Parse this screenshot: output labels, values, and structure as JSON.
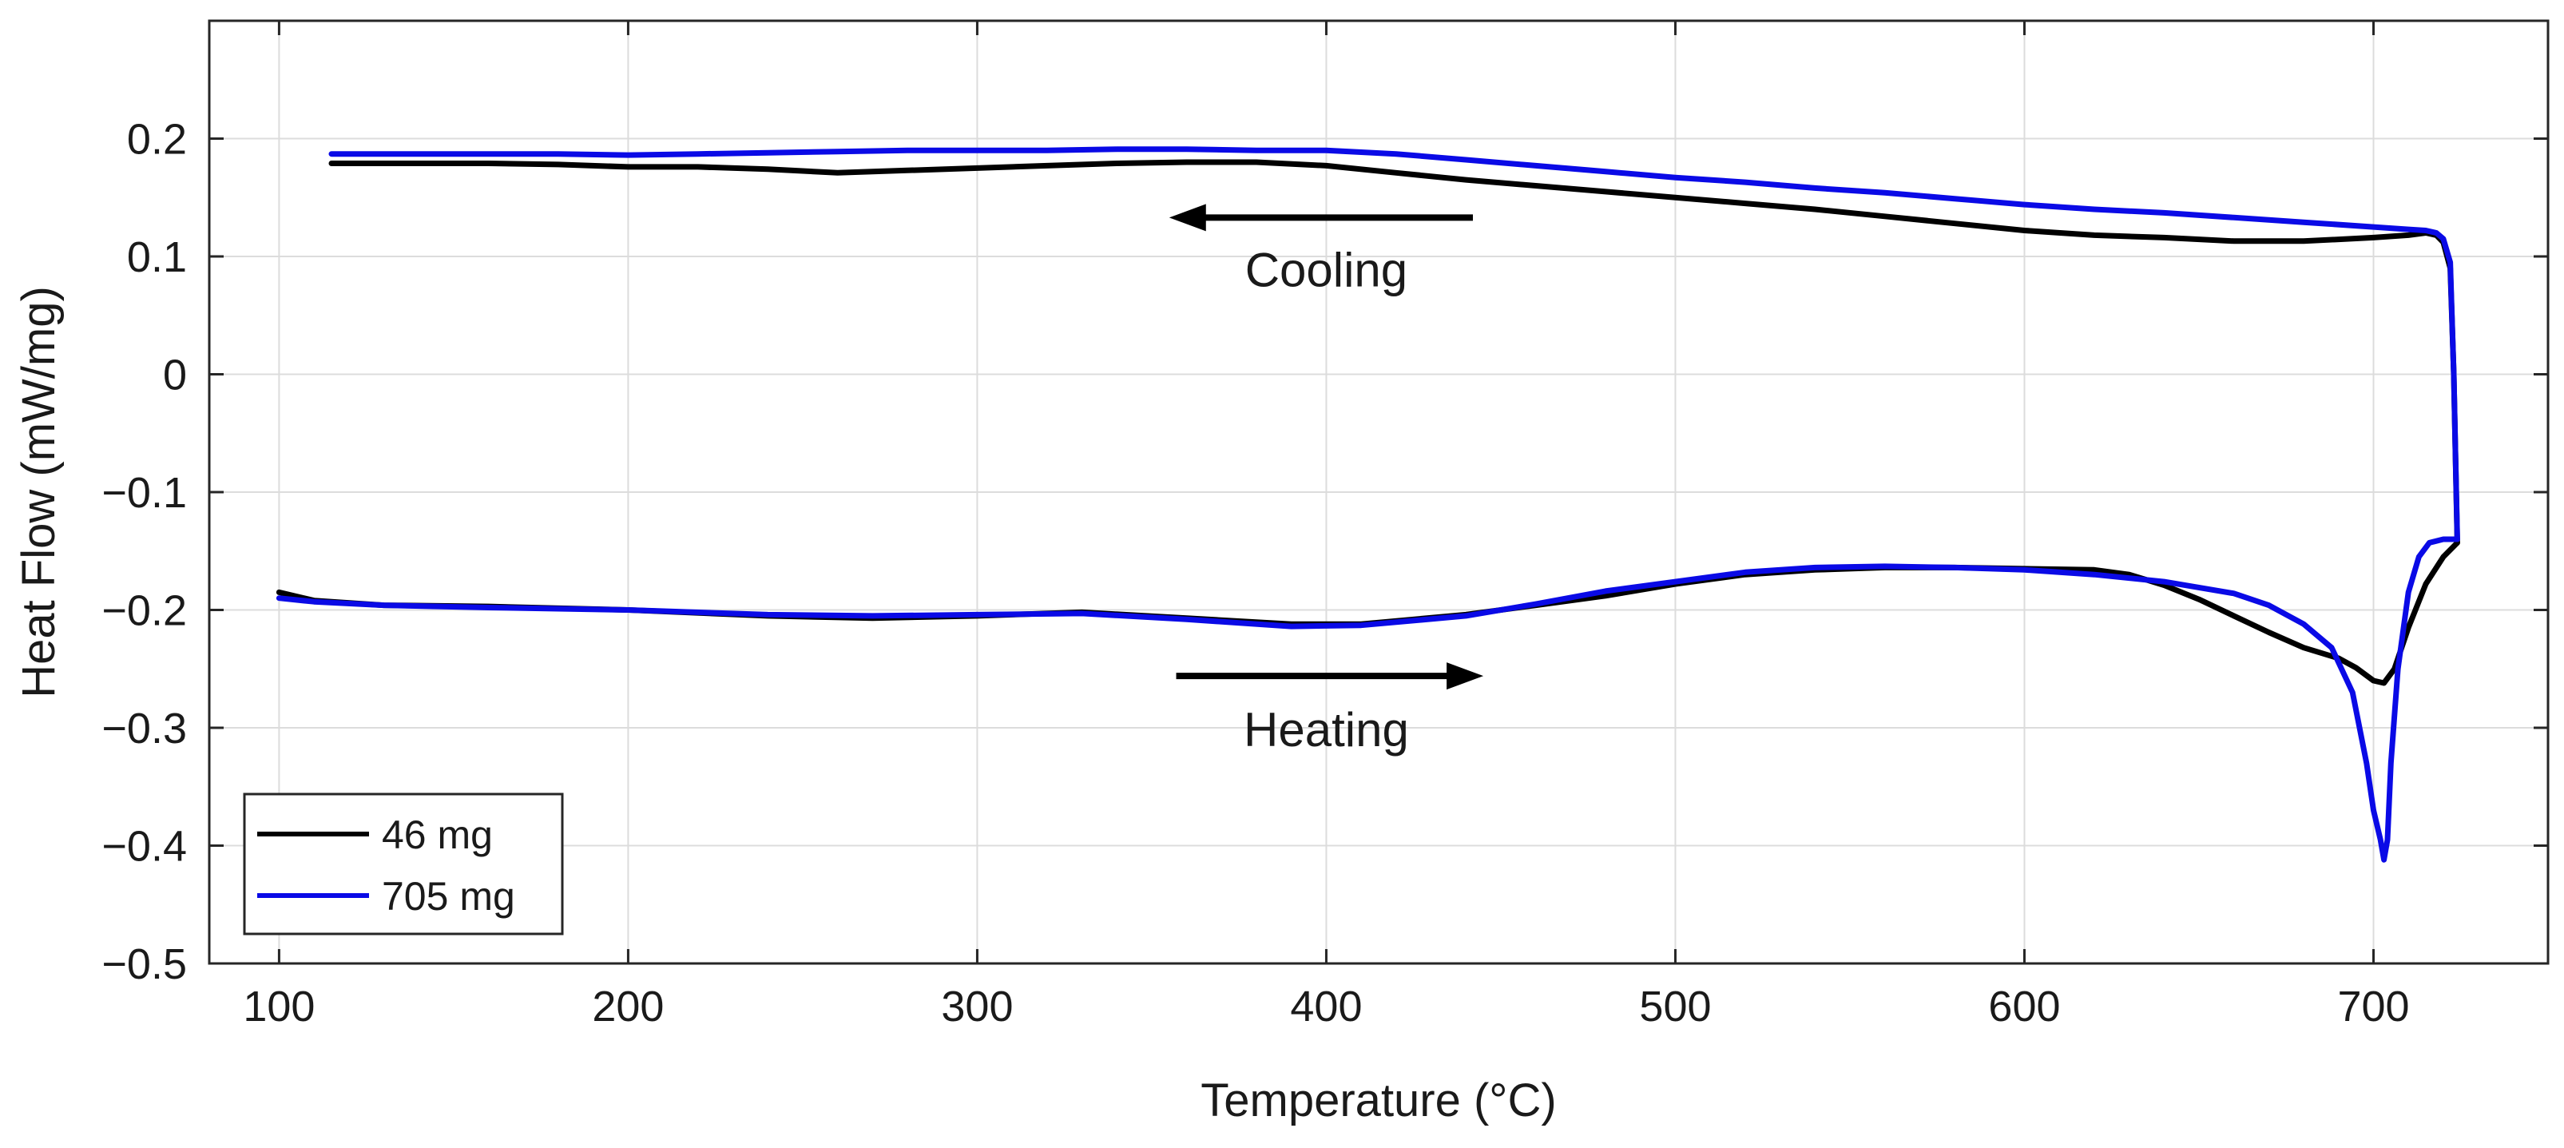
{
  "chart_data": {
    "type": "line",
    "title": "",
    "xlabel": "Temperature (°C)",
    "ylabel": "Heat Flow (mW/mg)",
    "xlim": [
      80,
      750
    ],
    "ylim": [
      -0.5,
      0.3
    ],
    "grid": true,
    "x_ticks": [
      100,
      200,
      300,
      400,
      500,
      600,
      700
    ],
    "y_ticks": [
      -0.5,
      -0.4,
      -0.3,
      -0.2,
      -0.1,
      0,
      0.1,
      0.2
    ],
    "x_tick_labels": [
      "100",
      "200",
      "300",
      "400",
      "500",
      "600",
      "700"
    ],
    "y_tick_labels": [
      "−0.5",
      "−0.4",
      "−0.3",
      "−0.2",
      "−0.1",
      "0",
      "0.1",
      "0.2"
    ],
    "legend_position": "bottom-left",
    "annotations": [
      {
        "text": "Cooling",
        "direction": "left",
        "x": 400,
        "y": 0.088,
        "arrow_from_x": 442,
        "arrow_to_x": 355,
        "arrow_y": 0.133
      },
      {
        "text": "Heating",
        "direction": "right",
        "x": 400,
        "y": -0.302,
        "arrow_from_x": 357,
        "arrow_to_x": 445,
        "arrow_y": -0.256
      }
    ],
    "series": [
      {
        "name": "46 mg",
        "color": "#000000",
        "heating": {
          "x": [
            100,
            110,
            130,
            160,
            200,
            240,
            270,
            300,
            330,
            360,
            390,
            410,
            440,
            460,
            480,
            500,
            520,
            540,
            560,
            580,
            600,
            620,
            630,
            640,
            650,
            660,
            670,
            680,
            690,
            695,
            700,
            703,
            706,
            710,
            715,
            720,
            724
          ],
          "y": [
            -0.185,
            -0.192,
            -0.196,
            -0.197,
            -0.2,
            -0.205,
            -0.207,
            -0.205,
            -0.202,
            -0.207,
            -0.212,
            -0.212,
            -0.204,
            -0.196,
            -0.188,
            -0.178,
            -0.17,
            -0.166,
            -0.164,
            -0.164,
            -0.165,
            -0.166,
            -0.17,
            -0.179,
            -0.191,
            -0.205,
            -0.219,
            -0.232,
            -0.241,
            -0.249,
            -0.26,
            -0.262,
            -0.25,
            -0.215,
            -0.178,
            -0.155,
            -0.143
          ]
        },
        "cooling": {
          "x": [
            724,
            723,
            722,
            720,
            718,
            715,
            710,
            700,
            680,
            660,
            640,
            620,
            600,
            580,
            560,
            540,
            520,
            500,
            480,
            460,
            440,
            420,
            400,
            380,
            360,
            340,
            320,
            300,
            280,
            260,
            240,
            220,
            200,
            180,
            160,
            140,
            115
          ],
          "y": [
            -0.143,
            0.0,
            0.09,
            0.112,
            0.118,
            0.12,
            0.118,
            0.116,
            0.113,
            0.113,
            0.116,
            0.118,
            0.122,
            0.128,
            0.134,
            0.14,
            0.145,
            0.15,
            0.155,
            0.16,
            0.165,
            0.171,
            0.177,
            0.18,
            0.18,
            0.179,
            0.177,
            0.175,
            0.173,
            0.171,
            0.174,
            0.176,
            0.176,
            0.178,
            0.179,
            0.179,
            0.179
          ]
        }
      },
      {
        "name": "705 mg",
        "color": "#0a0ae6",
        "heating": {
          "x": [
            100,
            110,
            130,
            160,
            200,
            240,
            270,
            300,
            330,
            360,
            390,
            410,
            440,
            460,
            480,
            500,
            520,
            540,
            560,
            580,
            600,
            620,
            640,
            660,
            670,
            680,
            688,
            694,
            698,
            700,
            702,
            703,
            704,
            705,
            707,
            710,
            713,
            716,
            720,
            724
          ],
          "y": [
            -0.19,
            -0.193,
            -0.196,
            -0.198,
            -0.2,
            -0.204,
            -0.205,
            -0.204,
            -0.203,
            -0.208,
            -0.214,
            -0.213,
            -0.205,
            -0.195,
            -0.184,
            -0.176,
            -0.168,
            -0.164,
            -0.163,
            -0.164,
            -0.166,
            -0.17,
            -0.176,
            -0.186,
            -0.196,
            -0.212,
            -0.232,
            -0.27,
            -0.33,
            -0.37,
            -0.395,
            -0.412,
            -0.395,
            -0.33,
            -0.25,
            -0.185,
            -0.155,
            -0.143,
            -0.14,
            -0.14
          ]
        },
        "cooling": {
          "x": [
            724,
            723,
            722,
            720,
            718,
            715,
            710,
            700,
            680,
            660,
            640,
            620,
            600,
            580,
            560,
            540,
            520,
            500,
            480,
            460,
            440,
            420,
            400,
            380,
            360,
            340,
            320,
            300,
            280,
            260,
            240,
            220,
            200,
            180,
            160,
            140,
            115
          ],
          "y": [
            -0.14,
            0.0,
            0.095,
            0.115,
            0.12,
            0.122,
            0.123,
            0.125,
            0.129,
            0.133,
            0.137,
            0.14,
            0.144,
            0.149,
            0.154,
            0.158,
            0.163,
            0.167,
            0.172,
            0.177,
            0.182,
            0.187,
            0.19,
            0.19,
            0.191,
            0.191,
            0.19,
            0.19,
            0.19,
            0.189,
            0.188,
            0.187,
            0.186,
            0.187,
            0.187,
            0.187,
            0.187
          ]
        }
      }
    ]
  }
}
